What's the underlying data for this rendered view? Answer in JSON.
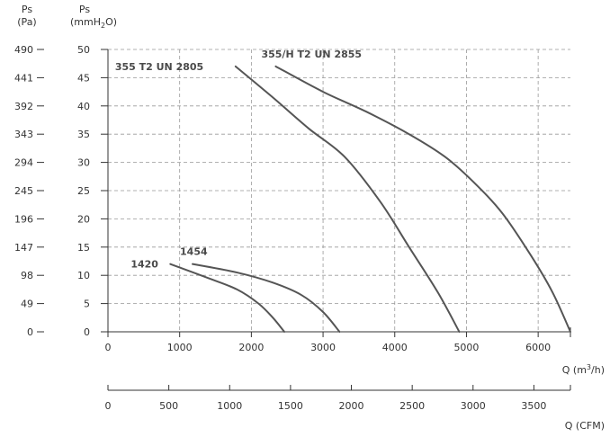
{
  "chart_data": {
    "type": "line",
    "left_axes": [
      {
        "title": "Ps",
        "unit_text": "(Pa)",
        "ticks": [
          "0",
          "49",
          "98",
          "147",
          "196",
          "245",
          "294",
          "343",
          "392",
          "441",
          "490"
        ]
      },
      {
        "title": "Ps",
        "unit_text": "(mmH",
        "unit_sub": "2",
        "unit_tail": "O)",
        "ticks": [
          "0",
          "5",
          "10",
          "15",
          "20",
          "25",
          "30",
          "35",
          "40",
          "45",
          "50"
        ]
      }
    ],
    "x_axis": {
      "label_main": "Q (m",
      "label_sup": "3",
      "label_tail": "/h)",
      "range": [
        0,
        6450
      ],
      "ticks": [
        "0",
        "1000",
        "2000",
        "3000",
        "4000",
        "5000",
        "6000"
      ]
    },
    "x_axis_secondary": {
      "label": "Q (CFM)",
      "range": [
        0,
        3800
      ],
      "ticks": [
        "0",
        "500",
        "1000",
        "1500",
        "2000",
        "2500",
        "3000",
        "3500"
      ]
    },
    "ylim": [
      0,
      50
    ],
    "grid": true,
    "series": [
      {
        "name": "1420",
        "color": "#555555",
        "x": [
          870,
          1400,
          1800,
          2100,
          2300,
          2460
        ],
        "y": [
          12,
          9.5,
          7.5,
          5,
          2.5,
          0
        ]
      },
      {
        "name": "1454",
        "color": "#555555",
        "x": [
          1180,
          1800,
          2300,
          2700,
          3000,
          3230
        ],
        "y": [
          12,
          10.5,
          8.7,
          6.5,
          3.5,
          0
        ]
      },
      {
        "name": "355 T2 UN 2805",
        "color": "#555555",
        "x": [
          1780,
          2300,
          2800,
          3300,
          3800,
          4200,
          4600,
          4900
        ],
        "y": [
          47,
          41.5,
          36,
          31,
          23,
          15,
          7,
          0
        ]
      },
      {
        "name": "355/H T2 UN 2855",
        "color": "#555555",
        "x": [
          2340,
          3000,
          3600,
          4200,
          4700,
          5100,
          5500,
          5900,
          6200,
          6450
        ],
        "y": [
          47,
          42.5,
          39,
          35,
          31,
          26.5,
          21,
          13.5,
          7,
          0
        ]
      }
    ]
  }
}
